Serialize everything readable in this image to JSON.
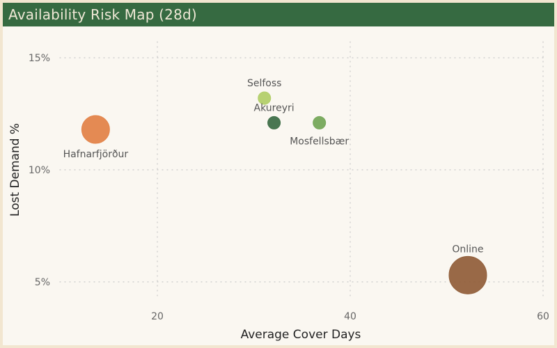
{
  "header": {
    "title": "Availability Risk Map (28d)"
  },
  "colors": {
    "header_bg": "#366a41",
    "plot_bg": "#faf7f1",
    "outer_bg": "#f2e6d0"
  },
  "chart_data": {
    "type": "scatter",
    "title": "Availability Risk Map (28d)",
    "xlabel": "Average Cover Days",
    "ylabel": "Lost Demand %",
    "xlim": [
      10,
      60
    ],
    "ylim": [
      4.3,
      16
    ],
    "x_ticks": [
      "20",
      "40",
      "60"
    ],
    "y_ticks": [
      "5%",
      "10%",
      "15%"
    ],
    "grid": true,
    "legend": "none",
    "points": [
      {
        "name": "Hafnarfjörður",
        "x": 13.6,
        "y": 11.8,
        "size": 20,
        "color": "#e3844a"
      },
      {
        "name": "Selfoss",
        "x": 31.1,
        "y": 13.2,
        "size": 9,
        "color": "#b3cf6a"
      },
      {
        "name": "Akureyri",
        "x": 32.1,
        "y": 12.1,
        "size": 9,
        "color": "#3f6f48"
      },
      {
        "name": "Mosfellsbær",
        "x": 36.8,
        "y": 12.1,
        "size": 9,
        "color": "#76a85a"
      },
      {
        "name": "Online",
        "x": 52.2,
        "y": 5.3,
        "size": 27,
        "color": "#93613d"
      }
    ]
  }
}
